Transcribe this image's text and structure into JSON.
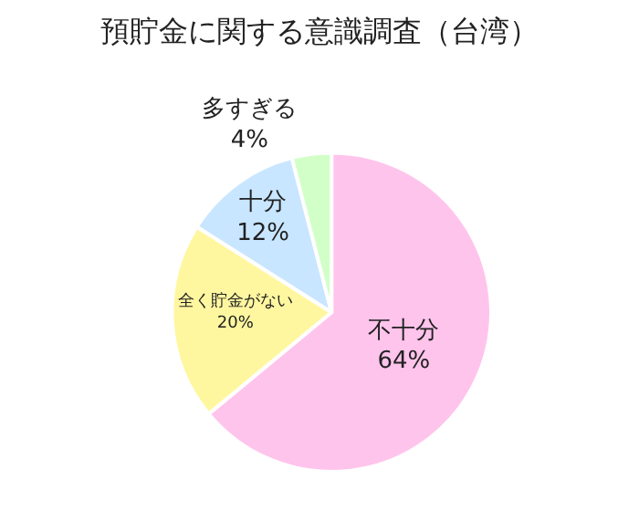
{
  "chart_data": {
    "type": "pie",
    "title": "預貯金に関する意識調査（台湾）",
    "categories": [
      "不十分",
      "全く貯金がない",
      "十分",
      "多すぎる"
    ],
    "values": [
      64,
      20,
      12,
      4
    ],
    "value_labels": [
      "64%",
      "20%",
      "12%",
      "4%"
    ],
    "colors": [
      "#ffc4ec",
      "#fff7a0",
      "#c8e6ff",
      "#d2ffc8"
    ],
    "legend": false
  }
}
